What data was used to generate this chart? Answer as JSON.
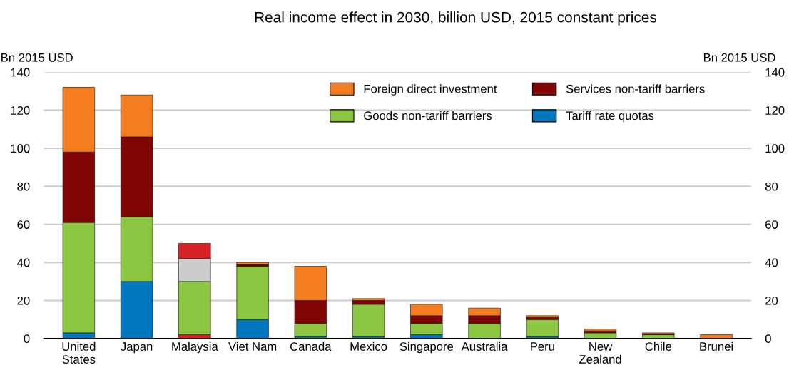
{
  "chart_data": {
    "type": "bar",
    "stacked": true,
    "title": "Real income effect in 2030, billion USD, 2015 constant prices",
    "ylabel": "Bn 2015 USD",
    "y2label": "Bn 2015 USD",
    "categories": [
      "United\nStates",
      "Japan",
      "Malaysia",
      "Viet Nam",
      "Canada",
      "Mexico",
      "Singapore",
      "Australia",
      "Peru",
      "New\nZealand",
      "Chile",
      "Brunei"
    ],
    "series": [
      {
        "name": "Tariff rate quotas",
        "color": "#0077bf",
        "colors": [
          "#0077bf",
          "#0077bf",
          "#d92027",
          "#0077bf",
          "#0077bf",
          "#0077bf",
          "#0077bf",
          "#0077bf",
          "#0077bf",
          "#0077bf",
          "#0077bf",
          "#0077bf"
        ],
        "values": [
          3,
          30,
          2,
          10,
          1,
          1,
          2,
          0,
          1,
          0,
          0,
          0
        ]
      },
      {
        "name": "Goods non-tariff barriers",
        "color": "#8cc641",
        "values": [
          58,
          34,
          28,
          28,
          7,
          17,
          6,
          8,
          9,
          3,
          2,
          0
        ]
      },
      {
        "name": "Services non-tariff barriers",
        "color": "#800606",
        "colors": [
          "#800606",
          "#800606",
          "#cccccc",
          "#800606",
          "#800606",
          "#800606",
          "#800606",
          "#800606",
          "#800606",
          "#800606",
          "#800606",
          "#800606"
        ],
        "values": [
          37,
          42,
          12,
          1,
          12,
          2,
          4,
          4,
          1,
          1,
          0.5,
          0
        ]
      },
      {
        "name": "Foreign direct investment",
        "color": "#f47d20",
        "colors": [
          "#f47d20",
          "#f47d20",
          "#d92027",
          "#f47d20",
          "#f47d20",
          "#f47d20",
          "#f47d20",
          "#f47d20",
          "#f47d20",
          "#f47d20",
          "#f47d20",
          "#f47d20"
        ],
        "values": [
          34,
          22,
          8,
          1,
          18,
          1,
          6,
          4,
          1,
          1,
          0.5,
          2
        ]
      }
    ],
    "ylim": [
      0,
      140
    ],
    "yticks": [
      0,
      20,
      40,
      60,
      80,
      100,
      120,
      140
    ],
    "y2lim": [
      0,
      140
    ],
    "y2ticks": [
      0,
      20,
      40,
      60,
      80,
      100,
      120,
      140
    ],
    "grid": "y",
    "legend": "top right"
  }
}
